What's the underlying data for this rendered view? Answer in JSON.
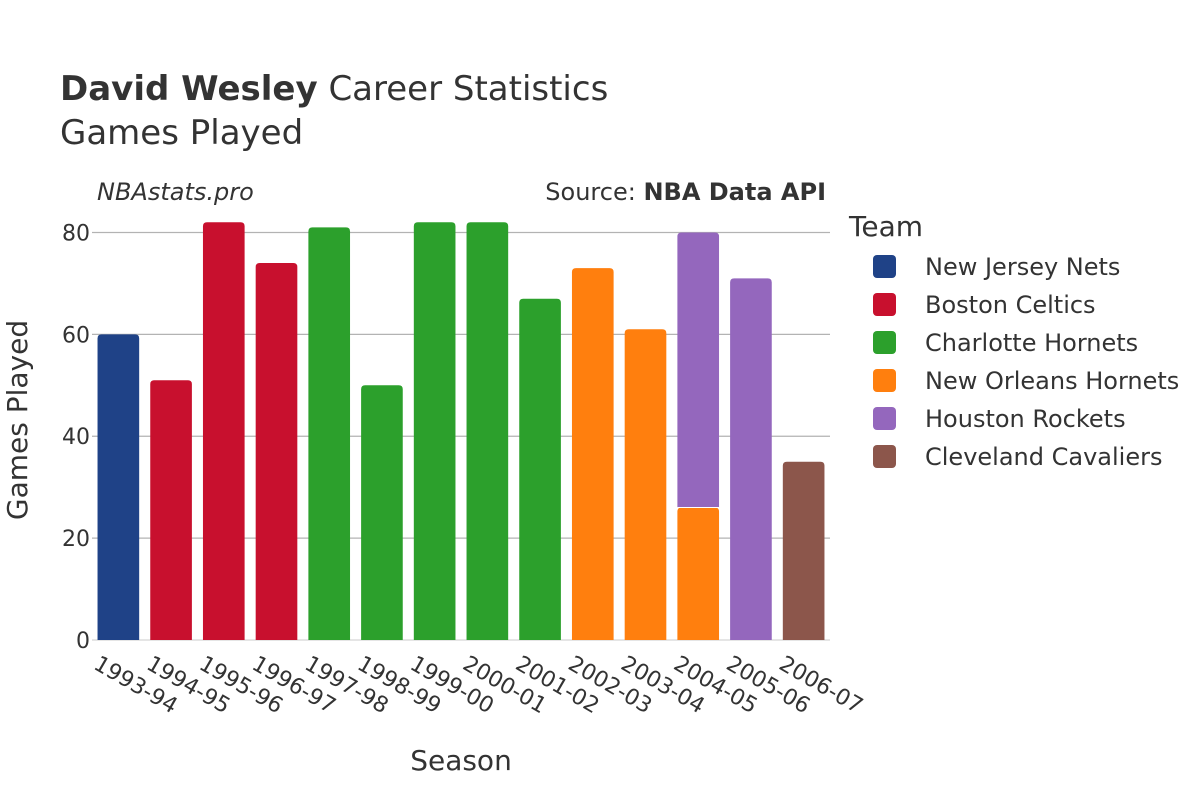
{
  "title": {
    "player": "David Wesley",
    "rest": "Career Statistics",
    "subtitle": "Games Played"
  },
  "watermark": "NBAstats.pro",
  "source": {
    "prefix": "Source: ",
    "name": "NBA Data API"
  },
  "chart_data": {
    "type": "bar",
    "stacked": true,
    "categories": [
      "1993-94",
      "1994-95",
      "1995-96",
      "1996-97",
      "1997-98",
      "1998-99",
      "1999-00",
      "2000-01",
      "2001-02",
      "2002-03",
      "2003-04",
      "2004-05",
      "2005-06",
      "2006-07"
    ],
    "series": [
      {
        "name": "New Jersey Nets",
        "color": "#1f4287",
        "values": [
          60,
          0,
          0,
          0,
          0,
          0,
          0,
          0,
          0,
          0,
          0,
          0,
          0,
          0
        ]
      },
      {
        "name": "Boston Celtics",
        "color": "#c8102e",
        "values": [
          0,
          51,
          82,
          74,
          0,
          0,
          0,
          0,
          0,
          0,
          0,
          0,
          0,
          0
        ]
      },
      {
        "name": "Charlotte Hornets",
        "color": "#2ca02c",
        "values": [
          0,
          0,
          0,
          0,
          81,
          50,
          82,
          82,
          67,
          0,
          0,
          0,
          0,
          0
        ]
      },
      {
        "name": "New Orleans Hornets",
        "color": "#ff7f0e",
        "values": [
          0,
          0,
          0,
          0,
          0,
          0,
          0,
          0,
          0,
          73,
          61,
          26,
          0,
          0
        ]
      },
      {
        "name": "Houston Rockets",
        "color": "#9467bd",
        "values": [
          0,
          0,
          0,
          0,
          0,
          0,
          0,
          0,
          0,
          0,
          0,
          54,
          71,
          0
        ]
      },
      {
        "name": "Cleveland Cavaliers",
        "color": "#8c564b",
        "values": [
          0,
          0,
          0,
          0,
          0,
          0,
          0,
          0,
          0,
          0,
          0,
          0,
          0,
          35
        ]
      }
    ],
    "xlabel": "Season",
    "ylabel": "Games Played",
    "ylim": [
      0,
      85
    ],
    "yticks": [
      0,
      20,
      40,
      60,
      80
    ],
    "legend_title": "Team",
    "legend_position": "right",
    "grid": true
  }
}
